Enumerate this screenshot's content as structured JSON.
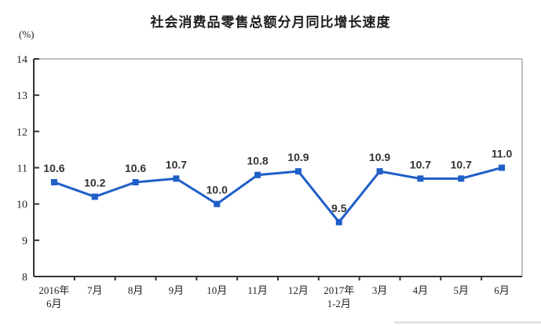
{
  "header": {
    "title": "社会消费品零售总额分月同比增长速度",
    "unit_label": "(%)"
  },
  "chart_data": {
    "type": "line",
    "title": "社会消费品零售总额分月同比增长速度",
    "ylabel": "(%)",
    "xlabel": "",
    "categories": [
      "2016年\n6月",
      "7月",
      "8月",
      "9月",
      "10月",
      "11月",
      "12月",
      "2017年\n1-2月",
      "3月",
      "4月",
      "5月",
      "6月"
    ],
    "values": [
      10.6,
      10.2,
      10.6,
      10.7,
      10.0,
      10.8,
      10.9,
      9.5,
      10.9,
      10.7,
      10.7,
      11.0
    ],
    "value_labels": [
      "10.6",
      "10.2",
      "10.6",
      "10.7",
      "10.0",
      "10.8",
      "10.9",
      "9.5",
      "10.9",
      "10.7",
      "10.7",
      "11.0"
    ],
    "yticks": [
      8,
      9,
      10,
      11,
      12,
      13,
      14
    ],
    "ylim": [
      8,
      14
    ],
    "grid": false,
    "legend": "none",
    "marker": "square",
    "colors": {
      "line": "#1f5fc8",
      "marker": "#1f5fc8",
      "value_label": "#333333",
      "axis_dark": "#333333",
      "axis_light": "#aaaaaa",
      "tick_label": "#222222"
    }
  }
}
